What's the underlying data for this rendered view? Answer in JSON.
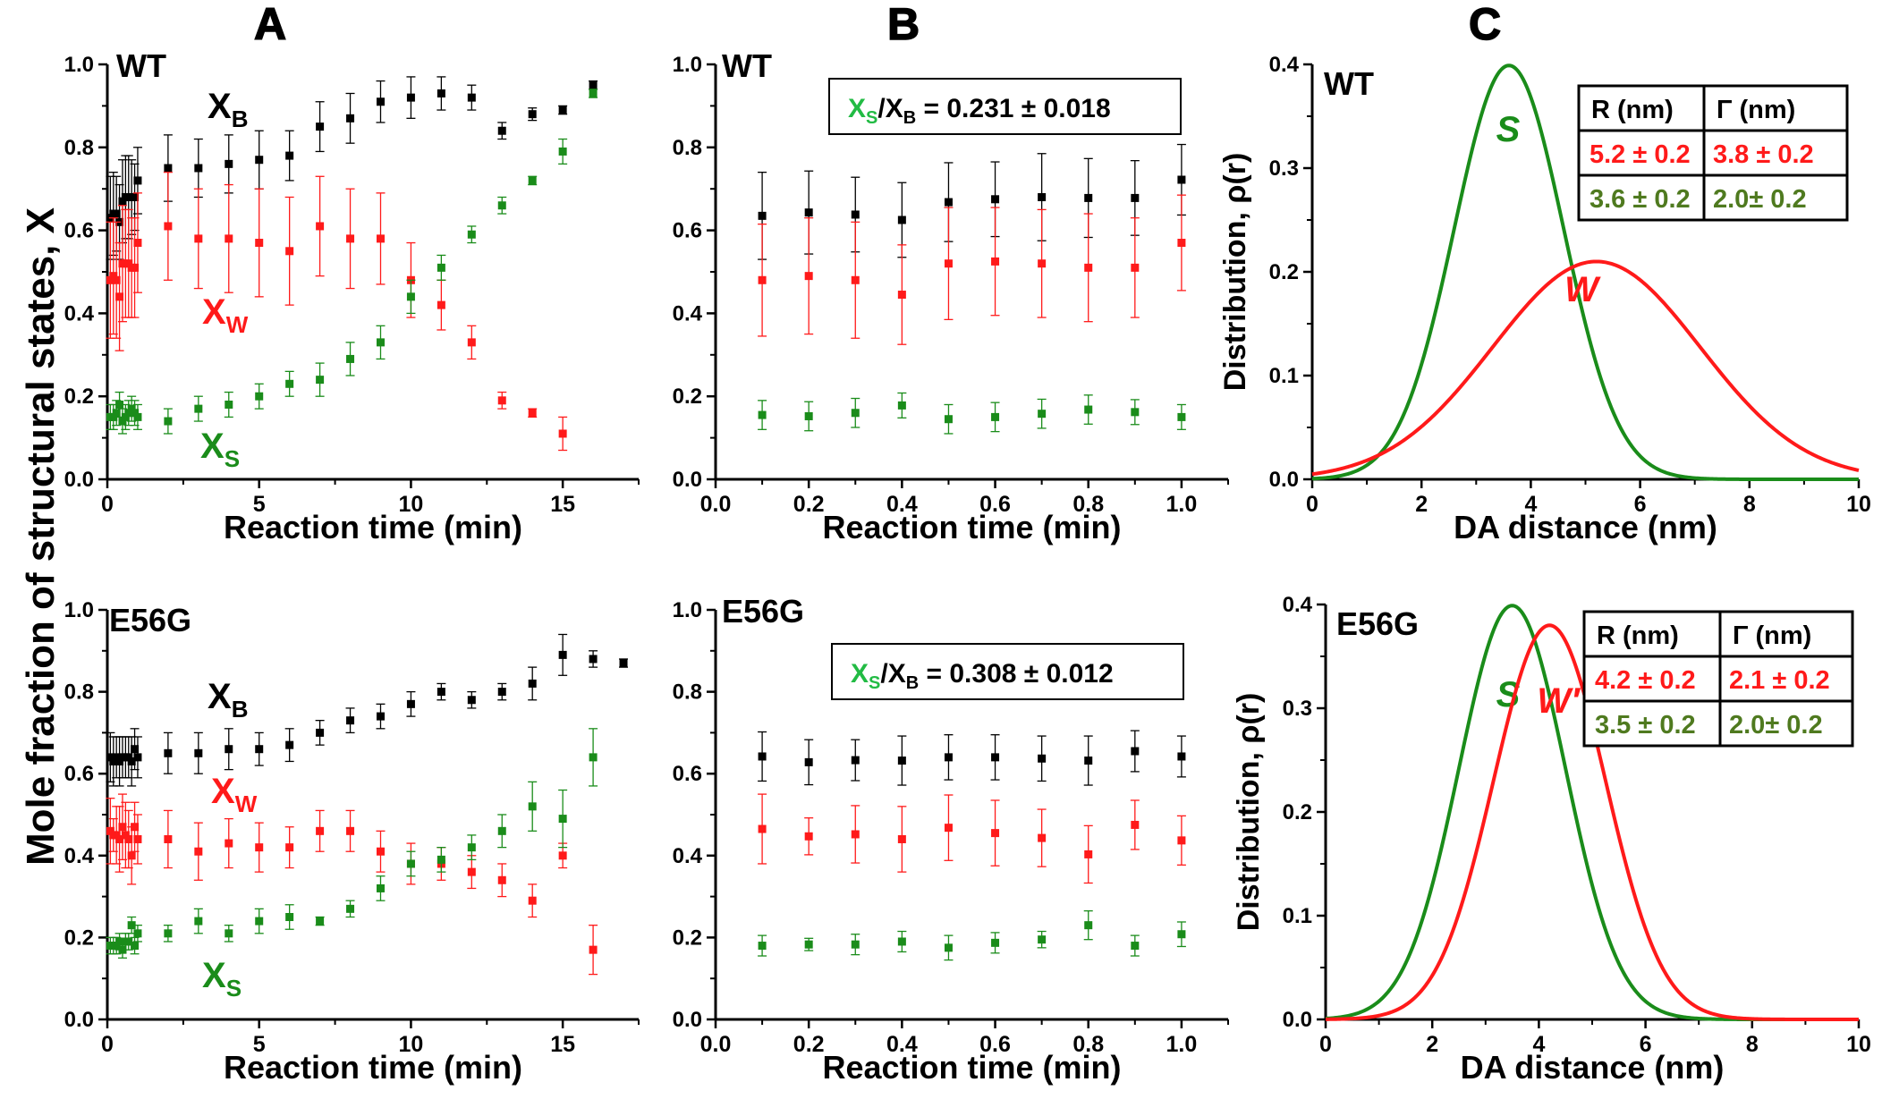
{
  "figure": {
    "panel_letters": [
      "A",
      "B",
      "C"
    ],
    "shared_ylabel": "Mole fraction of structural states, X"
  },
  "colors": {
    "black": "#000000",
    "red": "#ff1a1a",
    "green": "#1a8c1a",
    "olive": "#4f7a1f",
    "ratio_green": "#22bb44"
  },
  "chart_data": [
    {
      "id": "A-WT",
      "type": "scatter",
      "sample": "WT",
      "xlabel": "Reaction time (min)",
      "xlim": [
        0,
        17.5
      ],
      "ylim": [
        0,
        1
      ],
      "xticks": [
        "0",
        "5",
        "10",
        "15"
      ],
      "xtick_values": [
        0,
        5,
        10,
        15
      ],
      "yticks": [
        "0.0",
        "0.2",
        "0.4",
        "0.6",
        "0.8",
        "1.0"
      ],
      "ytick_values": [
        0,
        0.2,
        0.4,
        0.6,
        0.8,
        1.0
      ],
      "series": [
        {
          "name": "XB",
          "color": "#000000",
          "x": [
            0.1,
            0.2,
            0.3,
            0.4,
            0.5,
            0.6,
            0.7,
            0.8,
            0.9,
            1,
            2,
            3,
            4,
            5,
            6,
            7,
            8,
            9,
            10,
            11,
            12,
            13,
            14,
            15,
            16
          ],
          "y": [
            0.63,
            0.64,
            0.64,
            0.62,
            0.67,
            0.68,
            0.68,
            0.68,
            0.68,
            0.72,
            0.75,
            0.75,
            0.76,
            0.77,
            0.78,
            0.85,
            0.87,
            0.91,
            0.92,
            0.93,
            0.92,
            0.84,
            0.88,
            0.89,
            0.95
          ],
          "err": [
            0.1,
            0.1,
            0.09,
            0.09,
            0.1,
            0.1,
            0.1,
            0.09,
            0.08,
            0.08,
            0.08,
            0.07,
            0.07,
            0.07,
            0.06,
            0.06,
            0.06,
            0.05,
            0.05,
            0.04,
            0.03,
            0.02,
            0.015,
            0.01,
            0.01
          ]
        },
        {
          "name": "XW",
          "color": "#ff1a1a",
          "x": [
            0.1,
            0.2,
            0.3,
            0.4,
            0.5,
            0.6,
            0.7,
            0.8,
            0.9,
            1,
            2,
            3,
            4,
            5,
            6,
            7,
            8,
            9,
            10,
            11,
            12,
            13,
            14,
            15
          ],
          "y": [
            0.48,
            0.49,
            0.48,
            0.44,
            0.52,
            0.52,
            0.52,
            0.51,
            0.51,
            0.57,
            0.61,
            0.58,
            0.58,
            0.57,
            0.55,
            0.61,
            0.58,
            0.58,
            0.48,
            0.42,
            0.33,
            0.19,
            0.16,
            0.11
          ],
          "err": [
            0.14,
            0.14,
            0.14,
            0.13,
            0.14,
            0.13,
            0.13,
            0.12,
            0.12,
            0.12,
            0.13,
            0.12,
            0.13,
            0.13,
            0.13,
            0.12,
            0.12,
            0.11,
            0.09,
            0.06,
            0.04,
            0.02,
            0.01,
            0.04
          ]
        },
        {
          "name": "XS",
          "color": "#1a8c1a",
          "x": [
            0.1,
            0.2,
            0.3,
            0.4,
            0.5,
            0.6,
            0.7,
            0.8,
            0.9,
            1,
            2,
            3,
            4,
            5,
            6,
            7,
            8,
            9,
            10,
            11,
            12,
            13,
            14,
            15,
            16
          ],
          "y": [
            0.15,
            0.15,
            0.16,
            0.18,
            0.14,
            0.15,
            0.16,
            0.17,
            0.16,
            0.15,
            0.14,
            0.17,
            0.18,
            0.2,
            0.23,
            0.24,
            0.29,
            0.33,
            0.44,
            0.51,
            0.59,
            0.66,
            0.72,
            0.79,
            0.93
          ],
          "err": [
            0.03,
            0.03,
            0.03,
            0.03,
            0.03,
            0.03,
            0.03,
            0.03,
            0.03,
            0.03,
            0.03,
            0.03,
            0.03,
            0.03,
            0.03,
            0.04,
            0.04,
            0.04,
            0.04,
            0.03,
            0.02,
            0.02,
            0.01,
            0.03,
            0.01
          ]
        }
      ],
      "annotations": [
        "XB",
        "XW",
        "XS"
      ]
    },
    {
      "id": "B-WT",
      "type": "scatter",
      "sample": "WT",
      "xlabel": "Reaction time (min)",
      "xlim": [
        0,
        1.1
      ],
      "ylim": [
        0,
        1
      ],
      "xticks": [
        "0.0",
        "0.2",
        "0.4",
        "0.6",
        "0.8",
        "1.0"
      ],
      "xtick_values": [
        0,
        0.2,
        0.4,
        0.6,
        0.8,
        1.0
      ],
      "yticks": [
        "0.0",
        "0.2",
        "0.4",
        "0.6",
        "0.8",
        "1.0"
      ],
      "ytick_values": [
        0,
        0.2,
        0.4,
        0.6,
        0.8,
        1.0
      ],
      "ratio_label": "XS/XB = 0.231 ± 0.018",
      "series": [
        {
          "name": "XB",
          "color": "#000000",
          "x": [
            0.1,
            0.2,
            0.3,
            0.4,
            0.5,
            0.6,
            0.7,
            0.8,
            0.9,
            1.0
          ],
          "y": [
            0.635,
            0.643,
            0.638,
            0.625,
            0.668,
            0.675,
            0.68,
            0.678,
            0.678,
            0.722
          ],
          "err": [
            0.105,
            0.1,
            0.09,
            0.09,
            0.095,
            0.09,
            0.105,
            0.095,
            0.09,
            0.085
          ]
        },
        {
          "name": "XW",
          "color": "#ff1a1a",
          "x": [
            0.1,
            0.2,
            0.3,
            0.4,
            0.5,
            0.6,
            0.7,
            0.8,
            0.9,
            1.0
          ],
          "y": [
            0.48,
            0.49,
            0.48,
            0.445,
            0.52,
            0.525,
            0.52,
            0.51,
            0.51,
            0.57
          ],
          "err": [
            0.135,
            0.14,
            0.14,
            0.12,
            0.135,
            0.13,
            0.13,
            0.13,
            0.12,
            0.115
          ]
        },
        {
          "name": "XS",
          "color": "#1a8c1a",
          "x": [
            0.1,
            0.2,
            0.3,
            0.4,
            0.5,
            0.6,
            0.7,
            0.8,
            0.9,
            1.0
          ],
          "y": [
            0.155,
            0.152,
            0.16,
            0.178,
            0.145,
            0.15,
            0.158,
            0.168,
            0.162,
            0.15
          ],
          "err": [
            0.035,
            0.035,
            0.035,
            0.03,
            0.035,
            0.035,
            0.035,
            0.035,
            0.03,
            0.03
          ]
        }
      ]
    },
    {
      "id": "C-WT",
      "type": "line",
      "sample": "WT",
      "xlabel": "DA distance (nm)",
      "ylabel": "Distribution, ρ(r)",
      "xlim": [
        0,
        10
      ],
      "ylim": [
        0,
        0.4
      ],
      "xticks": [
        "0",
        "2",
        "4",
        "6",
        "8",
        "10"
      ],
      "xtick_values": [
        0,
        2,
        4,
        6,
        8,
        10
      ],
      "yticks": [
        "0.0",
        "0.1",
        "0.2",
        "0.3",
        "0.4"
      ],
      "ytick_values": [
        0,
        0.1,
        0.2,
        0.3,
        0.4
      ],
      "series": [
        {
          "name": "S",
          "color": "#1a8c1a",
          "center": 3.6,
          "fwhm": 2.0
        },
        {
          "name": "W",
          "color": "#ff1a1a",
          "center": 5.2,
          "fwhm": 3.8
        }
      ],
      "table": {
        "headers": [
          "R (nm)",
          "Γ (nm)"
        ],
        "rows": [
          {
            "color": "#ff1a1a",
            "cells": [
              "5.2 ± 0.2",
              "3.8 ± 0.2"
            ]
          },
          {
            "color": "#4f7a1f",
            "cells": [
              "3.6 ± 0.2",
              "2.0± 0.2"
            ]
          }
        ]
      },
      "annotations": [
        "S",
        "W"
      ]
    },
    {
      "id": "A-E56G",
      "type": "scatter",
      "sample": "E56G",
      "xlabel": "Reaction time (min)",
      "xlim": [
        0,
        17.5
      ],
      "ylim": [
        0,
        1
      ],
      "xticks": [
        "0",
        "5",
        "10",
        "15"
      ],
      "xtick_values": [
        0,
        5,
        10,
        15
      ],
      "yticks": [
        "0.0",
        "0.2",
        "0.4",
        "0.6",
        "0.8",
        "1.0"
      ],
      "ytick_values": [
        0,
        0.2,
        0.4,
        0.6,
        0.8,
        1.0
      ],
      "series": [
        {
          "name": "XB",
          "color": "#000000",
          "x": [
            0.1,
            0.2,
            0.3,
            0.4,
            0.5,
            0.6,
            0.7,
            0.8,
            0.9,
            1,
            2,
            3,
            4,
            5,
            6,
            7,
            8,
            9,
            10,
            11,
            12,
            13,
            14,
            15,
            16,
            17
          ],
          "y": [
            0.64,
            0.63,
            0.64,
            0.63,
            0.64,
            0.64,
            0.64,
            0.63,
            0.66,
            0.64,
            0.65,
            0.65,
            0.66,
            0.66,
            0.67,
            0.7,
            0.73,
            0.74,
            0.77,
            0.8,
            0.78,
            0.8,
            0.82,
            0.89,
            0.88,
            0.87
          ],
          "err": [
            0.06,
            0.06,
            0.05,
            0.06,
            0.05,
            0.05,
            0.05,
            0.06,
            0.05,
            0.05,
            0.05,
            0.05,
            0.05,
            0.04,
            0.04,
            0.03,
            0.03,
            0.03,
            0.03,
            0.02,
            0.02,
            0.02,
            0.04,
            0.05,
            0.02,
            0.01
          ]
        },
        {
          "name": "XW",
          "color": "#ff1a1a",
          "x": [
            0.1,
            0.2,
            0.3,
            0.4,
            0.5,
            0.6,
            0.7,
            0.8,
            0.9,
            1,
            2,
            3,
            4,
            5,
            6,
            7,
            8,
            9,
            10,
            11,
            12,
            13,
            14,
            15,
            16
          ],
          "y": [
            0.46,
            0.45,
            0.45,
            0.44,
            0.47,
            0.45,
            0.44,
            0.4,
            0.47,
            0.44,
            0.44,
            0.41,
            0.43,
            0.42,
            0.42,
            0.46,
            0.46,
            0.41,
            0.38,
            0.38,
            0.36,
            0.34,
            0.29,
            0.4,
            0.17
          ],
          "err": [
            0.08,
            0.04,
            0.07,
            0.08,
            0.08,
            0.08,
            0.07,
            0.07,
            0.06,
            0.06,
            0.07,
            0.07,
            0.06,
            0.06,
            0.05,
            0.05,
            0.05,
            0.05,
            0.05,
            0.04,
            0.04,
            0.04,
            0.04,
            0.03,
            0.06
          ]
        },
        {
          "name": "XS",
          "color": "#1a8c1a",
          "x": [
            0.1,
            0.2,
            0.3,
            0.4,
            0.5,
            0.6,
            0.7,
            0.8,
            0.9,
            1,
            2,
            3,
            4,
            5,
            6,
            7,
            8,
            9,
            10,
            11,
            12,
            13,
            14,
            15,
            16
          ],
          "y": [
            0.18,
            0.18,
            0.18,
            0.19,
            0.17,
            0.19,
            0.19,
            0.23,
            0.18,
            0.21,
            0.21,
            0.24,
            0.21,
            0.24,
            0.25,
            0.24,
            0.27,
            0.32,
            0.38,
            0.39,
            0.42,
            0.46,
            0.52,
            0.49,
            0.64
          ],
          "err": [
            0.02,
            0.02,
            0.02,
            0.02,
            0.02,
            0.02,
            0.02,
            0.02,
            0.02,
            0.02,
            0.02,
            0.03,
            0.02,
            0.03,
            0.03,
            0.01,
            0.02,
            0.03,
            0.03,
            0.03,
            0.03,
            0.04,
            0.06,
            0.07,
            0.07
          ]
        }
      ],
      "annotations": [
        "XB",
        "XW",
        "XS"
      ]
    },
    {
      "id": "B-E56G",
      "type": "scatter",
      "sample": "E56G",
      "xlabel": "Reaction time (min)",
      "xlim": [
        0,
        1.1
      ],
      "ylim": [
        0,
        1
      ],
      "xticks": [
        "0.0",
        "0.2",
        "0.4",
        "0.6",
        "0.8",
        "1.0"
      ],
      "xtick_values": [
        0,
        0.2,
        0.4,
        0.6,
        0.8,
        1.0
      ],
      "yticks": [
        "0.0",
        "0.2",
        "0.4",
        "0.6",
        "0.8",
        "1.0"
      ],
      "ytick_values": [
        0,
        0.2,
        0.4,
        0.6,
        0.8,
        1.0
      ],
      "ratio_label": "XS/XB = 0.308 ± 0.012",
      "series": [
        {
          "name": "XB",
          "color": "#000000",
          "x": [
            0.1,
            0.2,
            0.3,
            0.4,
            0.5,
            0.6,
            0.7,
            0.8,
            0.9,
            1.0
          ],
          "y": [
            0.642,
            0.628,
            0.633,
            0.632,
            0.64,
            0.64,
            0.637,
            0.632,
            0.655,
            0.642
          ],
          "err": [
            0.06,
            0.055,
            0.05,
            0.06,
            0.055,
            0.055,
            0.055,
            0.06,
            0.05,
            0.05
          ]
        },
        {
          "name": "XW",
          "color": "#ff1a1a",
          "x": [
            0.1,
            0.2,
            0.3,
            0.4,
            0.5,
            0.6,
            0.7,
            0.8,
            0.9,
            1.0
          ],
          "y": [
            0.465,
            0.447,
            0.452,
            0.44,
            0.468,
            0.455,
            0.443,
            0.403,
            0.475,
            0.437
          ],
          "err": [
            0.085,
            0.045,
            0.07,
            0.08,
            0.08,
            0.08,
            0.07,
            0.07,
            0.06,
            0.06
          ]
        },
        {
          "name": "XS",
          "color": "#1a8c1a",
          "x": [
            0.1,
            0.2,
            0.3,
            0.4,
            0.5,
            0.6,
            0.7,
            0.8,
            0.9,
            1.0
          ],
          "y": [
            0.18,
            0.183,
            0.183,
            0.19,
            0.175,
            0.187,
            0.195,
            0.23,
            0.18,
            0.208
          ],
          "err": [
            0.025,
            0.015,
            0.025,
            0.025,
            0.03,
            0.025,
            0.02,
            0.035,
            0.025,
            0.03
          ]
        }
      ]
    },
    {
      "id": "C-E56G",
      "type": "line",
      "sample": "E56G",
      "xlabel": "DA distance (nm)",
      "ylabel": "Distribution, ρ(r)",
      "xlim": [
        0,
        10
      ],
      "ylim": [
        0,
        0.4
      ],
      "xticks": [
        "0",
        "2",
        "4",
        "6",
        "8",
        "10"
      ],
      "xtick_values": [
        0,
        2,
        4,
        6,
        8,
        10
      ],
      "yticks": [
        "0.0",
        "0.1",
        "0.2",
        "0.3",
        "0.4"
      ],
      "ytick_values": [
        0,
        0.1,
        0.2,
        0.3,
        0.4
      ],
      "series": [
        {
          "name": "S",
          "color": "#1a8c1a",
          "center": 3.5,
          "fwhm": 2.0
        },
        {
          "name": "W′",
          "color": "#ff1a1a",
          "center": 4.2,
          "fwhm": 2.1
        }
      ],
      "table": {
        "headers": [
          "R (nm)",
          "Γ (nm)"
        ],
        "rows": [
          {
            "color": "#ff1a1a",
            "cells": [
              "4.2 ± 0.2",
              "2.1 ± 0.2"
            ]
          },
          {
            "color": "#4f7a1f",
            "cells": [
              "3.5 ± 0.2",
              "2.0± 0.2"
            ]
          }
        ]
      },
      "annotations": [
        "S",
        "W′"
      ]
    }
  ]
}
